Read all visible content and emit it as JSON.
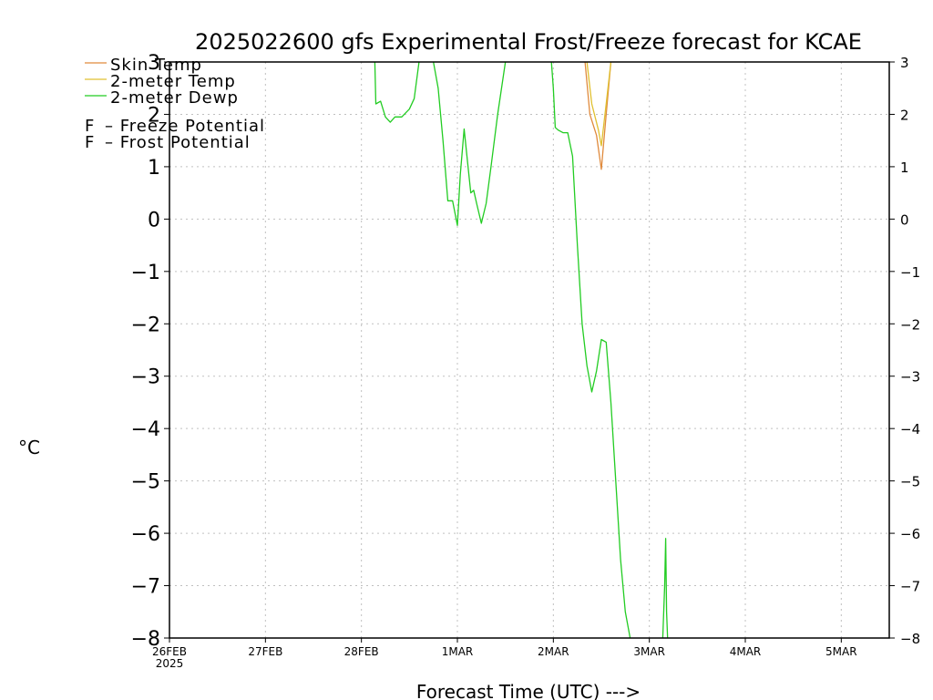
{
  "chart_data": {
    "type": "line",
    "title": "2025022600 gfs Experimental Frost/Freeze forecast for KCAE",
    "xlabel": "Forecast Time (UTC) --->",
    "ylabel": "°C",
    "x_tick_labels": [
      "26FEB",
      "27FEB",
      "28FEB",
      "1MAR",
      "2MAR",
      "3MAR",
      "4MAR",
      "5MAR"
    ],
    "x_year_label": "2025",
    "x_unit": "days since 26FEB 00Z",
    "xlim": [
      0,
      7.5
    ],
    "ylim": [
      -8,
      3
    ],
    "y_ticks": [
      -8,
      -7,
      -6,
      -5,
      -4,
      -3,
      -2,
      -1,
      0,
      1,
      2,
      3
    ],
    "y_tick_labels": [
      "−8",
      "−7",
      "−6",
      "−5",
      "−4",
      "−3",
      "−2",
      "−1",
      "0",
      "1",
      "2",
      "3"
    ],
    "grid": true,
    "legend_position": "top-left",
    "legend": [
      {
        "label": "Skin Temp",
        "color": "#e08a3c"
      },
      {
        "label": "2-meter Temp",
        "color": "#e0c030"
      },
      {
        "label": "2-meter Dewp",
        "color": "#22cc22"
      }
    ],
    "potential_legend": [
      {
        "marker": "F",
        "label": "– Freeze Potential",
        "color": "#cc22aa"
      },
      {
        "marker": "F",
        "label": "– Frost Potential",
        "color": "#3355ee"
      }
    ],
    "series": [
      {
        "name": "Skin Temp",
        "color": "#e08a3c",
        "points": [
          [
            4.33,
            3.0
          ],
          [
            4.38,
            2.0
          ],
          [
            4.45,
            1.6
          ],
          [
            4.5,
            0.95
          ],
          [
            4.55,
            2.0
          ],
          [
            4.6,
            3.0
          ]
        ]
      },
      {
        "name": "2-meter Temp",
        "color": "#e0c030",
        "points": [
          [
            4.35,
            3.0
          ],
          [
            4.4,
            2.2
          ],
          [
            4.47,
            1.7
          ],
          [
            4.5,
            1.4
          ],
          [
            4.55,
            2.2
          ],
          [
            4.6,
            3.0
          ]
        ]
      },
      {
        "name": "2-meter Dewp",
        "color": "#22cc22",
        "segments": [
          [
            [
              2.14,
              3.0
            ],
            [
              2.15,
              2.2
            ],
            [
              2.2,
              2.25
            ],
            [
              2.25,
              1.95
            ],
            [
              2.3,
              1.85
            ],
            [
              2.35,
              1.95
            ],
            [
              2.42,
              1.95
            ],
            [
              2.5,
              2.1
            ],
            [
              2.55,
              2.3
            ],
            [
              2.6,
              3.0
            ]
          ],
          [
            [
              2.75,
              3.0
            ],
            [
              2.8,
              2.5
            ],
            [
              2.85,
              1.5
            ],
            [
              2.9,
              0.35
            ],
            [
              2.95,
              0.35
            ],
            [
              3.0,
              -0.12
            ],
            [
              3.03,
              0.85
            ],
            [
              3.07,
              1.72
            ],
            [
              3.1,
              1.2
            ],
            [
              3.14,
              0.5
            ],
            [
              3.17,
              0.55
            ],
            [
              3.2,
              0.3
            ],
            [
              3.25,
              -0.08
            ],
            [
              3.3,
              0.3
            ],
            [
              3.35,
              1.0
            ],
            [
              3.42,
              2.0
            ],
            [
              3.5,
              3.0
            ]
          ],
          [
            [
              3.98,
              3.0
            ],
            [
              4.0,
              2.5
            ],
            [
              4.02,
              1.75
            ],
            [
              4.05,
              1.7
            ],
            [
              4.1,
              1.65
            ],
            [
              4.15,
              1.65
            ],
            [
              4.2,
              1.2
            ],
            [
              4.25,
              -0.5
            ],
            [
              4.3,
              -2.0
            ],
            [
              4.35,
              -2.8
            ],
            [
              4.4,
              -3.3
            ],
            [
              4.45,
              -2.9
            ],
            [
              4.5,
              -2.3
            ],
            [
              4.55,
              -2.35
            ],
            [
              4.6,
              -3.5
            ],
            [
              4.65,
              -5.0
            ],
            [
              4.7,
              -6.5
            ],
            [
              4.75,
              -7.5
            ],
            [
              4.8,
              -8.0
            ]
          ],
          [
            [
              5.14,
              -8.0
            ],
            [
              5.16,
              -7.0
            ],
            [
              5.17,
              -6.1
            ],
            [
              5.18,
              -7.5
            ],
            [
              5.19,
              -8.0
            ]
          ]
        ]
      }
    ]
  }
}
